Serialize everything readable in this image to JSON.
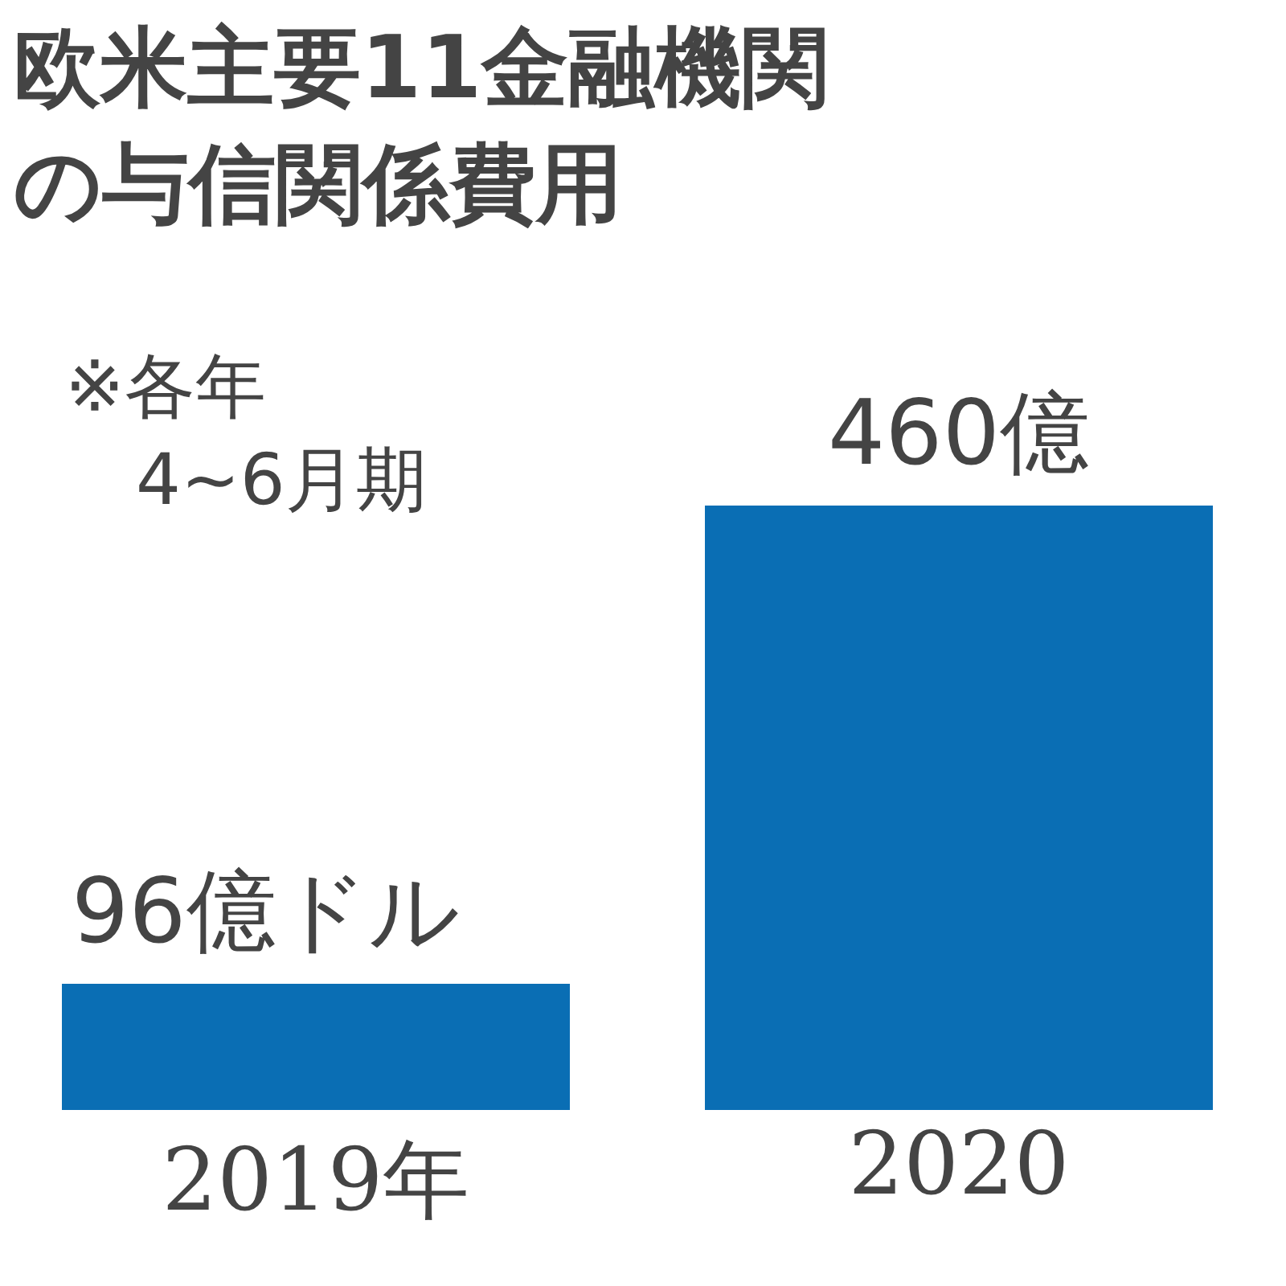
{
  "chart_data": {
    "type": "bar",
    "title": "欧米主要11金融機関の与信関係費用",
    "annotations": [
      "※各年",
      "4~6月期"
    ],
    "categories": [
      "2019年",
      "2020"
    ],
    "values": [
      96,
      460
    ],
    "value_labels": [
      "96億ドル",
      "460億"
    ],
    "color": "#0a6eb4"
  }
}
